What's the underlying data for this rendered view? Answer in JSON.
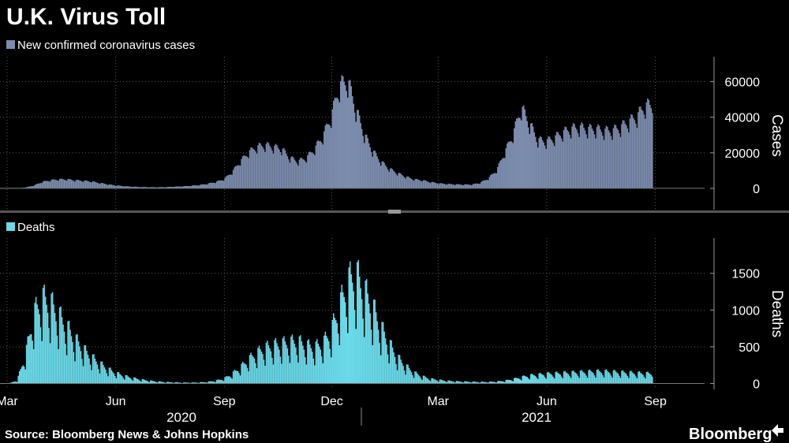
{
  "chart_data": [
    {
      "type": "bar",
      "title": "U.K. Virus Toll",
      "legend": "New confirmed coronavirus cases",
      "ylabel": "Cases",
      "ylim": [
        -12000,
        74000
      ],
      "yticks": [
        0,
        20000,
        40000,
        60000
      ],
      "color": "#7c8cad",
      "series_weekly": {
        "name": "New confirmed coronavirus cases",
        "start": "2020-02-24",
        "step_days": 7,
        "values": [
          0,
          0,
          100,
          500,
          1500,
          3500,
          4500,
          5000,
          5000,
          4500,
          4200,
          3800,
          3000,
          2200,
          1600,
          1200,
          900,
          750,
          650,
          600,
          700,
          900,
          1100,
          1400,
          1800,
          2500,
          3500,
          5000,
          9000,
          15000,
          20000,
          23000,
          24000,
          23000,
          22000,
          17000,
          15000,
          17000,
          22000,
          29000,
          40000,
          57000,
          60000,
          44000,
          30000,
          21000,
          15000,
          11000,
          8500,
          6500,
          5000,
          4500,
          3500,
          2800,
          2400,
          2200,
          2100,
          2100,
          3000,
          5500,
          10000,
          20000,
          30000,
          45000,
          36000,
          27000,
          26000,
          28000,
          31000,
          33000,
          34000,
          33000,
          33000,
          32000,
          32000,
          34000,
          37000,
          40000,
          46000
        ]
      }
    },
    {
      "type": "bar",
      "legend": "Deaths",
      "ylabel": "Deaths",
      "ylim": [
        -80,
        1980
      ],
      "yticks": [
        0,
        500,
        1000,
        1500
      ],
      "color": "#6ad9e8",
      "series_weekly": {
        "name": "Deaths",
        "start": "2020-02-24",
        "step_days": 7,
        "values": [
          0,
          0,
          40,
          350,
          850,
          1050,
          1000,
          850,
          700,
          550,
          430,
          330,
          250,
          180,
          130,
          95,
          70,
          50,
          35,
          25,
          18,
          15,
          12,
          12,
          14,
          20,
          35,
          60,
          120,
          200,
          300,
          380,
          440,
          470,
          490,
          510,
          520,
          470,
          450,
          500,
          650,
          950,
          1250,
          1350,
          1150,
          950,
          700,
          500,
          330,
          220,
          140,
          90,
          60,
          45,
          35,
          28,
          25,
          22,
          20,
          20,
          25,
          35,
          55,
          80,
          100,
          110,
          120,
          125,
          130,
          135,
          140,
          145,
          150,
          150,
          145,
          140,
          135,
          130,
          125
        ]
      }
    }
  ],
  "x_axis": {
    "month_labels": [
      "Mar",
      "Jun",
      "Sep",
      "Dec",
      "Mar",
      "Jun",
      "Sep"
    ],
    "year_labels": [
      "2020",
      "2021"
    ]
  },
  "footer": {
    "source": "Source: Bloomberg News & Johns Hopkins",
    "brand": "Bloomberg"
  }
}
